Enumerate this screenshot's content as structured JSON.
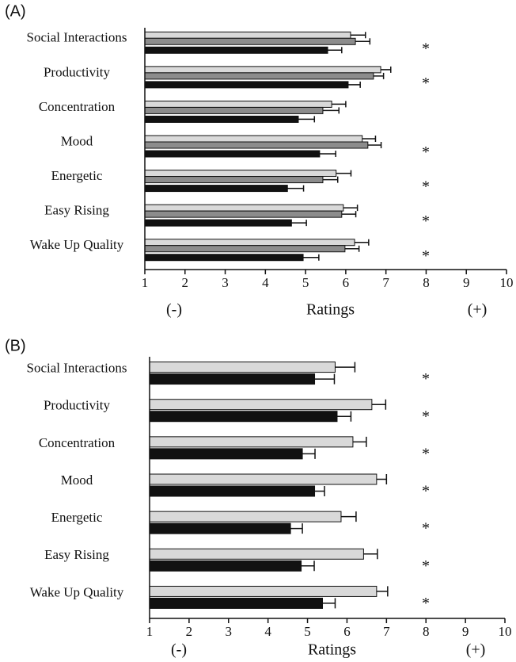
{
  "chart_data": [
    {
      "type": "bar",
      "orientation": "horizontal",
      "panel_label": "(A)",
      "categories": [
        "Social Interactions",
        "Productivity",
        "Concentration",
        "Mood",
        "Energetic",
        "Easy Rising",
        "Wake Up Quality"
      ],
      "series": [
        {
          "color": "#d9d9d9",
          "values": [
            6.12,
            6.87,
            5.65,
            6.41,
            5.76,
            5.94,
            6.22
          ],
          "errors": [
            0.37,
            0.25,
            0.35,
            0.33,
            0.37,
            0.35,
            0.35
          ]
        },
        {
          "color": "#8c8c8c",
          "values": [
            6.24,
            6.69,
            5.43,
            6.55,
            5.43,
            5.9,
            5.98
          ],
          "errors": [
            0.36,
            0.25,
            0.4,
            0.33,
            0.37,
            0.35,
            0.35
          ]
        },
        {
          "color": "#111111",
          "values": [
            5.55,
            6.06,
            4.82,
            5.35,
            4.55,
            4.65,
            4.94
          ],
          "errors": [
            0.35,
            0.3,
            0.4,
            0.4,
            0.4,
            0.37,
            0.39
          ]
        }
      ],
      "significance": [
        "*",
        "*",
        null,
        "*",
        "*",
        "*",
        "*"
      ],
      "xlim": [
        1,
        10
      ],
      "xticks": [
        1,
        2,
        3,
        4,
        5,
        6,
        7,
        8,
        9,
        10
      ],
      "xlabel": "Ratings",
      "axis_end_labels": [
        "(-)",
        "(+)"
      ]
    },
    {
      "type": "bar",
      "orientation": "horizontal",
      "panel_label": "(B)",
      "categories": [
        "Social Interactions",
        "Productivity",
        "Concentration",
        "Mood",
        "Energetic",
        "Easy Rising",
        "Wake Up Quality"
      ],
      "series": [
        {
          "color": "#d9d9d9",
          "values": [
            5.7,
            6.63,
            6.15,
            6.75,
            5.85,
            6.42,
            6.75
          ],
          "errors": [
            0.5,
            0.35,
            0.34,
            0.25,
            0.38,
            0.35,
            0.28
          ]
        },
        {
          "color": "#111111",
          "values": [
            5.18,
            5.75,
            4.87,
            5.18,
            4.57,
            4.84,
            5.38
          ],
          "errors": [
            0.5,
            0.35,
            0.32,
            0.25,
            0.3,
            0.33,
            0.32
          ]
        }
      ],
      "significance": [
        "*",
        "*",
        "*",
        "*",
        "*",
        "*",
        "*"
      ],
      "xlim": [
        1,
        10
      ],
      "xticks": [
        1,
        2,
        3,
        4,
        5,
        6,
        7,
        8,
        9,
        10
      ],
      "xlabel": "Ratings",
      "axis_end_labels": [
        "(-)",
        "(+)"
      ]
    }
  ]
}
